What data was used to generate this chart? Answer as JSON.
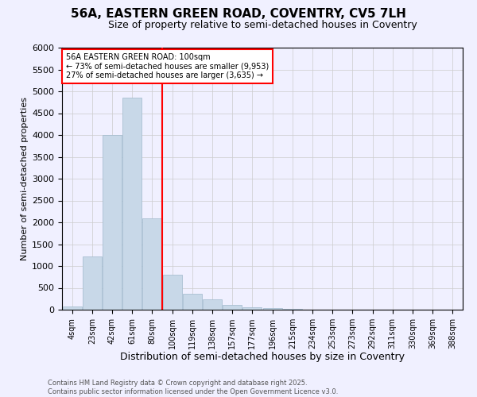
{
  "title_line1": "56A, EASTERN GREEN ROAD, COVENTRY, CV5 7LH",
  "title_line2": "Size of property relative to semi-detached houses in Coventry",
  "xlabel": "Distribution of semi-detached houses by size in Coventry",
  "ylabel": "Number of semi-detached properties",
  "annotation_line1": "56A EASTERN GREEN ROAD: 100sqm",
  "annotation_line2": "← 73% of semi-detached houses are smaller (9,953)",
  "annotation_line3": "27% of semi-detached houses are larger (3,635) →",
  "bar_labels": [
    "4sqm",
    "23sqm",
    "42sqm",
    "61sqm",
    "80sqm",
    "100sqm",
    "119sqm",
    "138sqm",
    "157sqm",
    "177sqm",
    "196sqm",
    "215sqm",
    "234sqm",
    "253sqm",
    "273sqm",
    "292sqm",
    "311sqm",
    "330sqm",
    "369sqm",
    "388sqm"
  ],
  "bar_values": [
    70,
    1210,
    4000,
    4860,
    2090,
    800,
    370,
    240,
    110,
    55,
    30,
    10,
    5,
    2,
    1,
    0,
    0,
    0,
    0,
    0
  ],
  "bar_color": "#c8d8e8",
  "bar_edgecolor": "#a0b8cc",
  "ylim": [
    0,
    6000
  ],
  "yticks": [
    0,
    500,
    1000,
    1500,
    2000,
    2500,
    3000,
    3500,
    4000,
    4500,
    5000,
    5500,
    6000
  ],
  "grid_color": "#cccccc",
  "background_color": "#f0f0ff",
  "footer": "Contains HM Land Registry data © Crown copyright and database right 2025.\nContains public sector information licensed under the Open Government Licence v3.0."
}
